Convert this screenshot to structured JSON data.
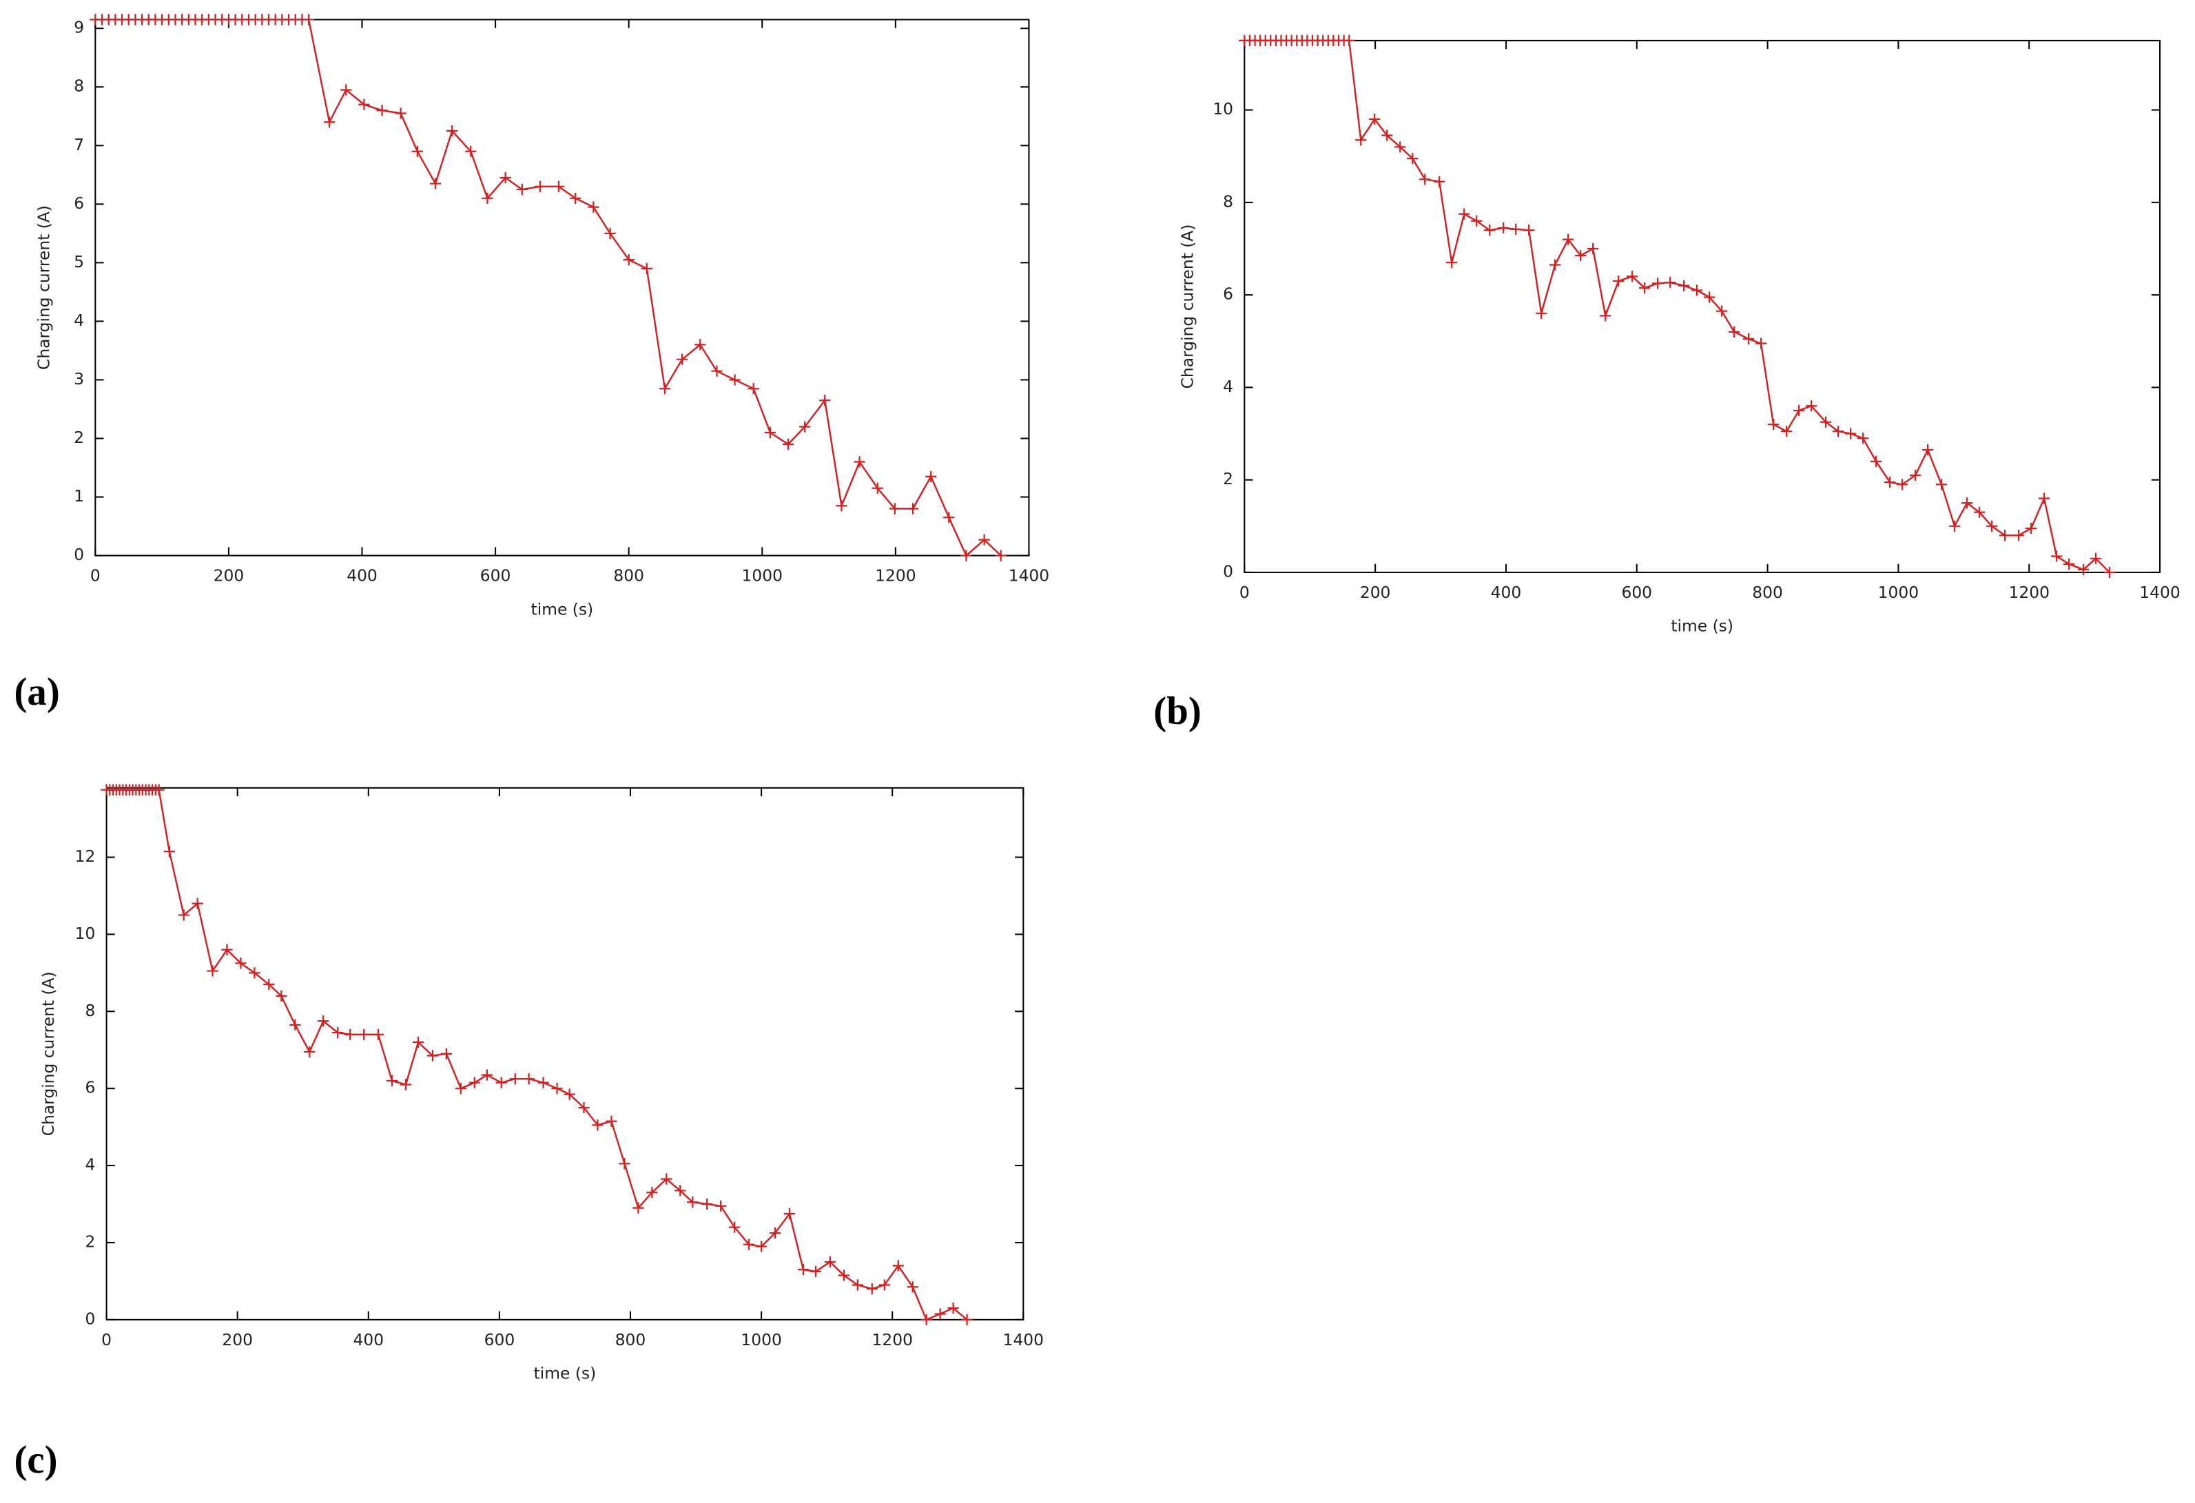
{
  "chart_data": [
    {
      "type": "line",
      "panel_label": "(a)",
      "x_label": "time (s)",
      "y_label": "Charging current (A)",
      "color": "#d42020",
      "marker": "+",
      "xlim": [
        0,
        1400
      ],
      "xticks": [
        0,
        200,
        400,
        600,
        800,
        1000,
        1200,
        1400
      ],
      "ylim": [
        0,
        9.15
      ],
      "yticks": [
        0,
        1,
        2,
        3,
        4,
        5,
        6,
        7,
        8,
        9
      ],
      "x": [
        0,
        10,
        20,
        30,
        40,
        50,
        60,
        70,
        80,
        90,
        100,
        110,
        120,
        130,
        140,
        150,
        160,
        170,
        180,
        190,
        200,
        210,
        220,
        230,
        240,
        250,
        260,
        270,
        280,
        290,
        300,
        310,
        320,
        351,
        376,
        403,
        430,
        458,
        483,
        510,
        535,
        563,
        588,
        615,
        640,
        667,
        695,
        720,
        747,
        772,
        800,
        827,
        854,
        880,
        907,
        932,
        959,
        987,
        1012,
        1039,
        1064,
        1094,
        1119,
        1146,
        1173,
        1199,
        1226,
        1253,
        1280,
        1306,
        1333,
        1358
      ],
      "values": [
        9.15,
        9.15,
        9.15,
        9.15,
        9.15,
        9.15,
        9.15,
        9.15,
        9.15,
        9.15,
        9.15,
        9.15,
        9.15,
        9.15,
        9.15,
        9.15,
        9.15,
        9.15,
        9.15,
        9.15,
        9.15,
        9.15,
        9.15,
        9.15,
        9.15,
        9.15,
        9.15,
        9.15,
        9.15,
        9.15,
        9.15,
        9.15,
        9.15,
        7.4,
        7.95,
        7.7,
        7.6,
        7.55,
        6.9,
        6.35,
        7.25,
        6.9,
        6.1,
        6.45,
        6.25,
        6.3,
        6.3,
        6.1,
        5.95,
        5.5,
        5.05,
        4.9,
        2.85,
        3.35,
        3.6,
        3.15,
        3.0,
        2.85,
        2.1,
        1.9,
        2.2,
        2.65,
        0.85,
        1.6,
        1.15,
        0.8,
        0.8,
        1.35,
        0.65,
        0,
        0.27,
        0
      ]
    },
    {
      "type": "line",
      "panel_label": "(b)",
      "x_label": "time (s)",
      "y_label": "Charging current (A)",
      "color": "#d42020",
      "marker": "+",
      "xlim": [
        0,
        1400
      ],
      "xticks": [
        0,
        200,
        400,
        600,
        800,
        1000,
        1200,
        1400
      ],
      "ylim": [
        0,
        11.5
      ],
      "yticks": [
        0,
        2,
        4,
        6,
        8,
        10
      ],
      "x": [
        0,
        8,
        16,
        24,
        32,
        40,
        48,
        56,
        64,
        72,
        80,
        88,
        96,
        104,
        112,
        120,
        128,
        136,
        144,
        152,
        160,
        178,
        199,
        218,
        238,
        257,
        276,
        298,
        317,
        336,
        355,
        375,
        396,
        415,
        435,
        454,
        475,
        495,
        514,
        533,
        552,
        572,
        593,
        612,
        632,
        651,
        672,
        692,
        711,
        730,
        749,
        771,
        790,
        809,
        829,
        848,
        867,
        889,
        908,
        927,
        946,
        966,
        987,
        1006,
        1026,
        1045,
        1066,
        1086,
        1105,
        1124,
        1143,
        1163,
        1184,
        1203,
        1223,
        1242,
        1261,
        1283,
        1302,
        1323
      ],
      "values": [
        11.5,
        11.5,
        11.5,
        11.5,
        11.5,
        11.5,
        11.5,
        11.5,
        11.5,
        11.5,
        11.5,
        11.5,
        11.5,
        11.5,
        11.5,
        11.5,
        11.5,
        11.5,
        11.5,
        11.5,
        11.5,
        9.35,
        9.8,
        9.45,
        9.2,
        8.95,
        8.5,
        8.45,
        6.7,
        7.75,
        7.6,
        7.4,
        7.45,
        7.42,
        7.4,
        5.6,
        6.65,
        7.2,
        6.85,
        7.0,
        5.55,
        6.3,
        6.4,
        6.15,
        6.25,
        6.27,
        6.2,
        6.1,
        5.95,
        5.65,
        5.2,
        5.05,
        4.95,
        3.2,
        3.05,
        3.5,
        3.6,
        3.25,
        3.05,
        3.0,
        2.9,
        2.4,
        1.95,
        1.9,
        2.1,
        2.65,
        1.9,
        1.0,
        1.5,
        1.3,
        1.0,
        0.8,
        0.8,
        0.95,
        1.6,
        0.35,
        0.18,
        0.06,
        0.3,
        0
      ]
    },
    {
      "type": "line",
      "panel_label": "(c)",
      "x_label": "time (s)",
      "y_label": "Charging current (A)",
      "color": "#d42020",
      "marker": "+",
      "xlim": [
        0,
        1400
      ],
      "xticks": [
        0,
        200,
        400,
        600,
        800,
        1000,
        1200,
        1400
      ],
      "ylim": [
        0,
        13.8
      ],
      "yticks": [
        0,
        2,
        4,
        6,
        8,
        10,
        12
      ],
      "x": [
        0,
        5,
        10,
        15,
        20,
        25,
        30,
        35,
        40,
        45,
        50,
        55,
        60,
        65,
        70,
        75,
        80,
        96,
        118,
        139,
        162,
        184,
        205,
        226,
        248,
        267,
        288,
        310,
        331,
        353,
        372,
        393,
        415,
        436,
        457,
        476,
        498,
        519,
        541,
        562,
        581,
        603,
        624,
        645,
        667,
        688,
        707,
        729,
        750,
        771,
        791,
        812,
        833,
        855,
        876,
        895,
        917,
        938,
        959,
        981,
        1000,
        1021,
        1043,
        1064,
        1083,
        1105,
        1126,
        1147,
        1169,
        1188,
        1209,
        1231,
        1252,
        1273,
        1293,
        1314
      ],
      "values": [
        13.75,
        13.75,
        13.75,
        13.75,
        13.75,
        13.75,
        13.75,
        13.75,
        13.75,
        13.75,
        13.75,
        13.75,
        13.75,
        13.75,
        13.75,
        13.75,
        13.75,
        12.15,
        10.5,
        10.8,
        9.05,
        9.6,
        9.25,
        9.0,
        8.7,
        8.4,
        7.65,
        6.95,
        7.75,
        7.45,
        7.4,
        7.4,
        7.4,
        6.2,
        6.1,
        7.2,
        6.85,
        6.9,
        6.0,
        6.15,
        6.35,
        6.15,
        6.25,
        6.25,
        6.15,
        6.0,
        5.85,
        5.5,
        5.05,
        5.15,
        4.05,
        2.9,
        3.3,
        3.65,
        3.35,
        3.05,
        3.0,
        2.95,
        2.4,
        1.95,
        1.9,
        2.25,
        2.75,
        1.3,
        1.25,
        1.5,
        1.15,
        0.9,
        0.8,
        0.9,
        1.4,
        0.85,
        0,
        0.15,
        0.3,
        0
      ]
    }
  ]
}
